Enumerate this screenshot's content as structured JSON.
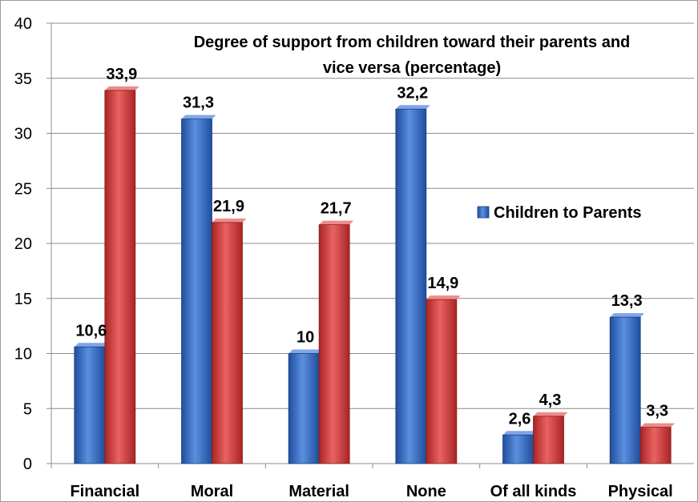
{
  "chart_data": {
    "type": "bar",
    "title_lines": [
      "Degree of support from children toward their parents and",
      "vice versa  (percentage)"
    ],
    "categories": [
      "Financial",
      "Moral",
      "Material",
      "None",
      "Of all kinds",
      "Physical"
    ],
    "series": [
      {
        "name": "Children to Parents",
        "color": "#3a6fc4",
        "values": [
          10.6,
          31.3,
          10,
          32.2,
          2.6,
          13.3
        ],
        "labels": [
          "10,6",
          "31,3",
          "10",
          "32,2",
          "2,6",
          "13,3"
        ]
      },
      {
        "color": "#cc3b3b",
        "values": [
          33.9,
          21.9,
          21.7,
          14.9,
          4.3,
          3.3
        ],
        "labels": [
          "33,9",
          "21,9",
          "21,7",
          "14,9",
          "4,3",
          "3,3"
        ]
      }
    ],
    "ylim": [
      0,
      40
    ],
    "yticks": [
      "0",
      "5",
      "10",
      "15",
      "20",
      "25",
      "30",
      "35",
      "40"
    ],
    "grid": true,
    "legend_position": "right"
  }
}
